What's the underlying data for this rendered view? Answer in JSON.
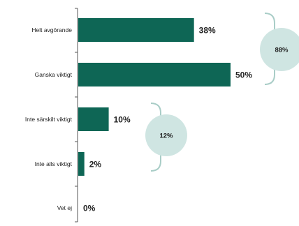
{
  "chart_data": {
    "type": "bar",
    "orientation": "horizontal",
    "categories": [
      "Helt avgörande",
      "Ganska viktigt",
      "Inte särskilt viktigt",
      "Inte alls viktigt",
      "Vet ej"
    ],
    "values": [
      38,
      50,
      10,
      2,
      0
    ],
    "value_labels": [
      "38%",
      "50%",
      "10%",
      "2%",
      "0%"
    ],
    "xlim": [
      0,
      50
    ],
    "grid": false,
    "bar_color": "#0e6655",
    "groups": [
      {
        "label": "88%",
        "spans_categories": [
          0,
          1
        ],
        "color": "#cfe5e2"
      },
      {
        "label": "12%",
        "spans_categories": [
          2,
          3
        ],
        "color": "#cfe5e2"
      }
    ]
  }
}
